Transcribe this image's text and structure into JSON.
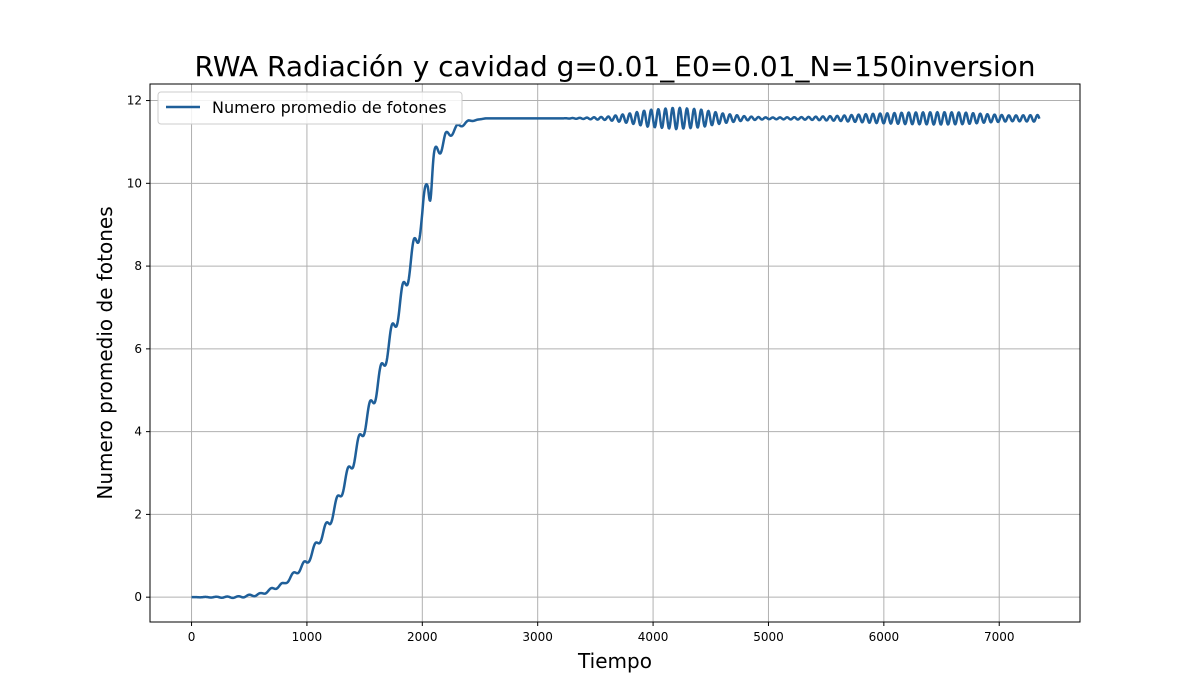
{
  "chart_data": {
    "type": "line",
    "title": "RWA Radiación y cavidad g=0.01_E0=0.01_N=150inversion",
    "xlabel": "Tiempo",
    "ylabel": "Numero promedio de fotones",
    "xlim": [
      -360,
      7700
    ],
    "ylim": [
      -0.6,
      12.4
    ],
    "xticks": [
      0,
      1000,
      2000,
      3000,
      4000,
      5000,
      6000,
      7000
    ],
    "yticks": [
      0,
      2,
      4,
      6,
      8,
      10,
      12
    ],
    "grid": true,
    "legend_position": "top-left",
    "series": [
      {
        "name": "Numero promedio de fotones",
        "color": "#1f5f99",
        "x_range": [
          0,
          7350
        ],
        "envelope": {
          "points": [
            [
              0,
              0
            ],
            [
              400,
              0.0
            ],
            [
              600,
              0.07
            ],
            [
              800,
              0.32
            ],
            [
              1000,
              0.85
            ],
            [
              1200,
              1.85
            ],
            [
              1400,
              3.3
            ],
            [
              1600,
              5.0
            ],
            [
              1800,
              7.0
            ],
            [
              1900,
              8.1
            ],
            [
              2000,
              9.2
            ],
            [
              2050,
              10.15
            ],
            [
              2100,
              10.6
            ],
            [
              2200,
              11.1
            ],
            [
              2300,
              11.35
            ],
            [
              2400,
              11.5
            ],
            [
              2550,
              11.57
            ],
            [
              7350,
              11.57
            ]
          ],
          "step_amplitude": [
            [
              0,
              0
            ],
            [
              800,
              0.04
            ],
            [
              1200,
              0.12
            ],
            [
              1600,
              0.2
            ],
            [
              1900,
              0.25
            ],
            [
              2000,
              0.28
            ],
            [
              2100,
              0.22
            ],
            [
              2250,
              0.08
            ],
            [
              2400,
              0.02
            ],
            [
              2500,
              0
            ]
          ],
          "step_period": 95,
          "late_oscillation": {
            "period": 62,
            "amplitude": [
              [
                3200,
                0
              ],
              [
                3400,
                0.015
              ],
              [
                3600,
                0.04
              ],
              [
                3800,
                0.12
              ],
              [
                3950,
                0.2
              ],
              [
                4200,
                0.26
              ],
              [
                4400,
                0.22
              ],
              [
                4600,
                0.12
              ],
              [
                4800,
                0.05
              ],
              [
                5000,
                0.02
              ],
              [
                5300,
                0.03
              ],
              [
                5600,
                0.06
              ],
              [
                5900,
                0.11
              ],
              [
                6200,
                0.14
              ],
              [
                6500,
                0.15
              ],
              [
                6700,
                0.14
              ],
              [
                6900,
                0.1
              ],
              [
                7100,
                0.07
              ],
              [
                7350,
                0.08
              ]
            ]
          },
          "dip_at": [
            2070,
            -0.5
          ]
        }
      }
    ]
  }
}
